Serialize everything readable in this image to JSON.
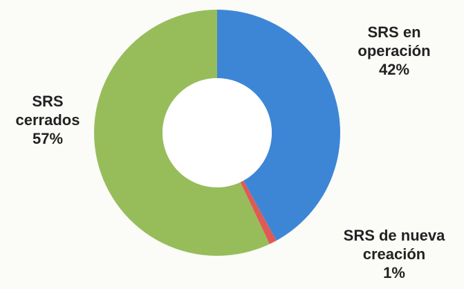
{
  "chart_data": {
    "type": "pie",
    "variant": "donut",
    "title": "",
    "legend": "none",
    "slices": [
      {
        "name_lines": [
          "SRS en",
          "operación"
        ],
        "value": 42,
        "value_label": "42%",
        "color": "#3d86d6"
      },
      {
        "name_lines": [
          "SRS de nueva",
          "creación"
        ],
        "value": 1,
        "value_label": "1%",
        "color": "#e05a55"
      },
      {
        "name_lines": [
          "SRS",
          "cerrados"
        ],
        "value": 57,
        "value_label": "57%",
        "color": "#97bd5b"
      }
    ]
  }
}
